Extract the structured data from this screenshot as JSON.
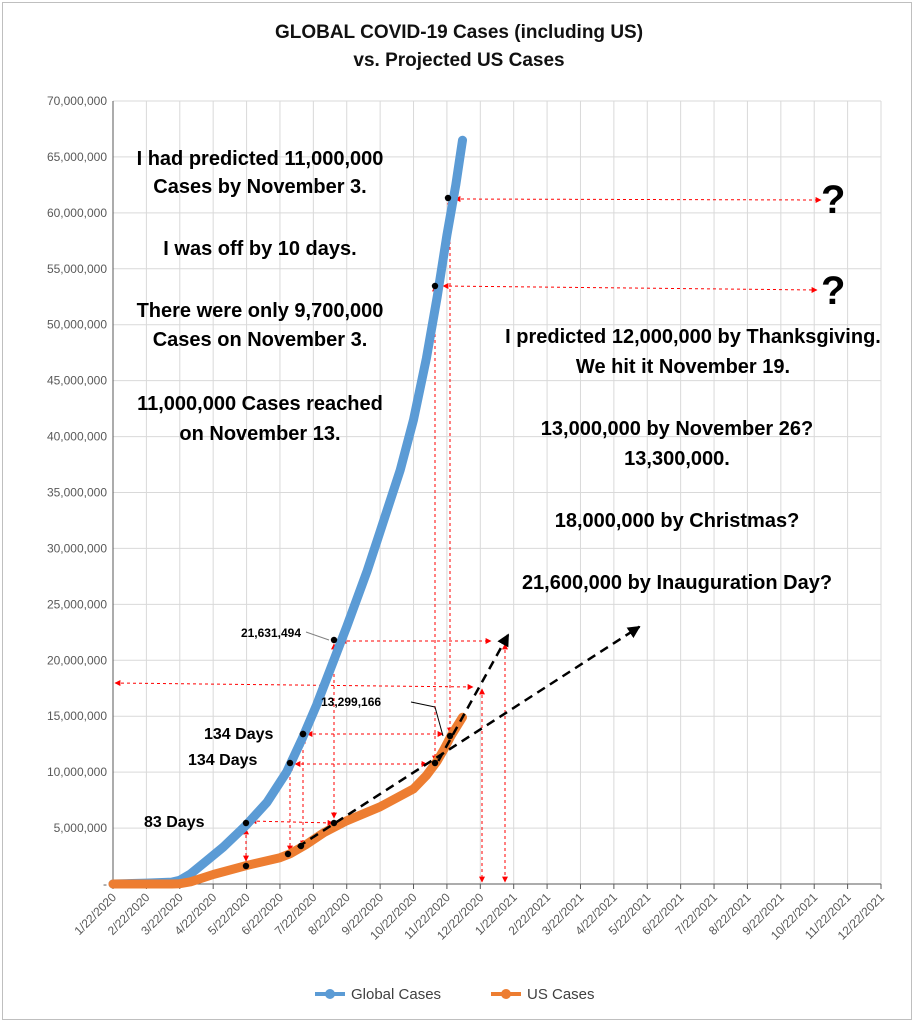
{
  "chart_data": {
    "type": "line",
    "title_line1": "GLOBAL COVID-19 Cases (including US)",
    "title_line2": "vs. Projected US Cases",
    "ylim": [
      0,
      70000000
    ],
    "y_ticks": [
      "-",
      "5,000,000",
      "10,000,000",
      "15,000,000",
      "20,000,000",
      "25,000,000",
      "30,000,000",
      "35,000,000",
      "40,000,000",
      "45,000,000",
      "50,000,000",
      "55,000,000",
      "60,000,000",
      "65,000,000",
      "70,000,000"
    ],
    "x_ticks": [
      "1/22/2020",
      "2/22/2020",
      "3/22/2020",
      "4/22/2020",
      "5/22/2020",
      "6/22/2020",
      "7/22/2020",
      "8/22/2020",
      "9/22/2020",
      "10/22/2020",
      "11/22/2020",
      "12/22/2020",
      "1/22/2021",
      "2/22/2021",
      "3/22/2021",
      "4/22/2021",
      "5/22/2021",
      "6/22/2021",
      "7/22/2021",
      "8/22/2021",
      "9/22/2021",
      "10/22/2021",
      "11/22/2021",
      "12/22/2021"
    ],
    "grid": true,
    "legend_position": "bottom",
    "series": [
      {
        "name": "Global Cases",
        "color": "#5b9bd5",
        "points": [
          [
            "2020-01-22",
            0
          ],
          [
            "2020-02-22",
            80000
          ],
          [
            "2020-03-15",
            170000
          ],
          [
            "2020-03-22",
            340000
          ],
          [
            "2020-04-01",
            900000
          ],
          [
            "2020-04-15",
            2000000
          ],
          [
            "2020-05-01",
            3300000
          ],
          [
            "2020-05-22",
            5300000
          ],
          [
            "2020-06-10",
            7300000
          ],
          [
            "2020-06-28",
            10000000
          ],
          [
            "2020-07-12",
            13000000
          ],
          [
            "2020-07-25",
            16000000
          ],
          [
            "2020-08-10",
            20000000
          ],
          [
            "2020-08-22",
            23000000
          ],
          [
            "2020-09-10",
            28000000
          ],
          [
            "2020-09-22",
            31500000
          ],
          [
            "2020-10-10",
            37000000
          ],
          [
            "2020-10-22",
            41500000
          ],
          [
            "2020-11-03",
            47000000
          ],
          [
            "2020-11-13",
            52500000
          ],
          [
            "2020-11-22",
            58000000
          ],
          [
            "2020-11-30",
            62500000
          ],
          [
            "2020-12-06",
            66500000
          ]
        ]
      },
      {
        "name": "US Cases",
        "color": "#ed7d31",
        "points": [
          [
            "2020-01-22",
            0
          ],
          [
            "2020-03-15",
            3000
          ],
          [
            "2020-03-22",
            30000
          ],
          [
            "2020-04-01",
            200000
          ],
          [
            "2020-04-22",
            850000
          ],
          [
            "2020-05-22",
            1650000
          ],
          [
            "2020-06-22",
            2350000
          ],
          [
            "2020-07-01",
            2700000
          ],
          [
            "2020-07-15",
            3500000
          ],
          [
            "2020-08-01",
            4600000
          ],
          [
            "2020-08-22",
            5650000
          ],
          [
            "2020-09-22",
            6900000
          ],
          [
            "2020-10-22",
            8500000
          ],
          [
            "2020-11-03",
            9700000
          ],
          [
            "2020-11-13",
            11000000
          ],
          [
            "2020-11-19",
            12000000
          ],
          [
            "2020-11-26",
            13300000
          ],
          [
            "2020-12-06",
            14900000
          ]
        ]
      }
    ],
    "projections": [
      {
        "from": [
          "2020-07-08",
          3300000
        ],
        "to": [
          "2021-05-15",
          23000000
        ]
      },
      {
        "from": [
          "2020-11-14",
          11000000
        ],
        "to": [
          "2021-01-17",
          22300000
        ]
      }
    ],
    "labels": {
      "v21631494": "21,631,494",
      "v13299166": "13,299,166",
      "d134a": "134 Days",
      "d134b": "134 Days",
      "d83": "83 Days"
    },
    "notes_left": [
      "I had predicted 11,000,000",
      "Cases by November 3.",
      "I was off by 10 days.",
      "There were only 9,700,000",
      "Cases on November 3.",
      "11,000,000 Cases reached",
      "on November 13."
    ],
    "notes_right": [
      "I predicted 12,000,000 by Thanksgiving.",
      "We hit it November 19.",
      "13,000,000 by November 26?",
      "13,300,000.",
      "18,000,000 by Christmas?",
      "21,600,000 by Inauguration Day?"
    ],
    "question_mark": "?"
  }
}
